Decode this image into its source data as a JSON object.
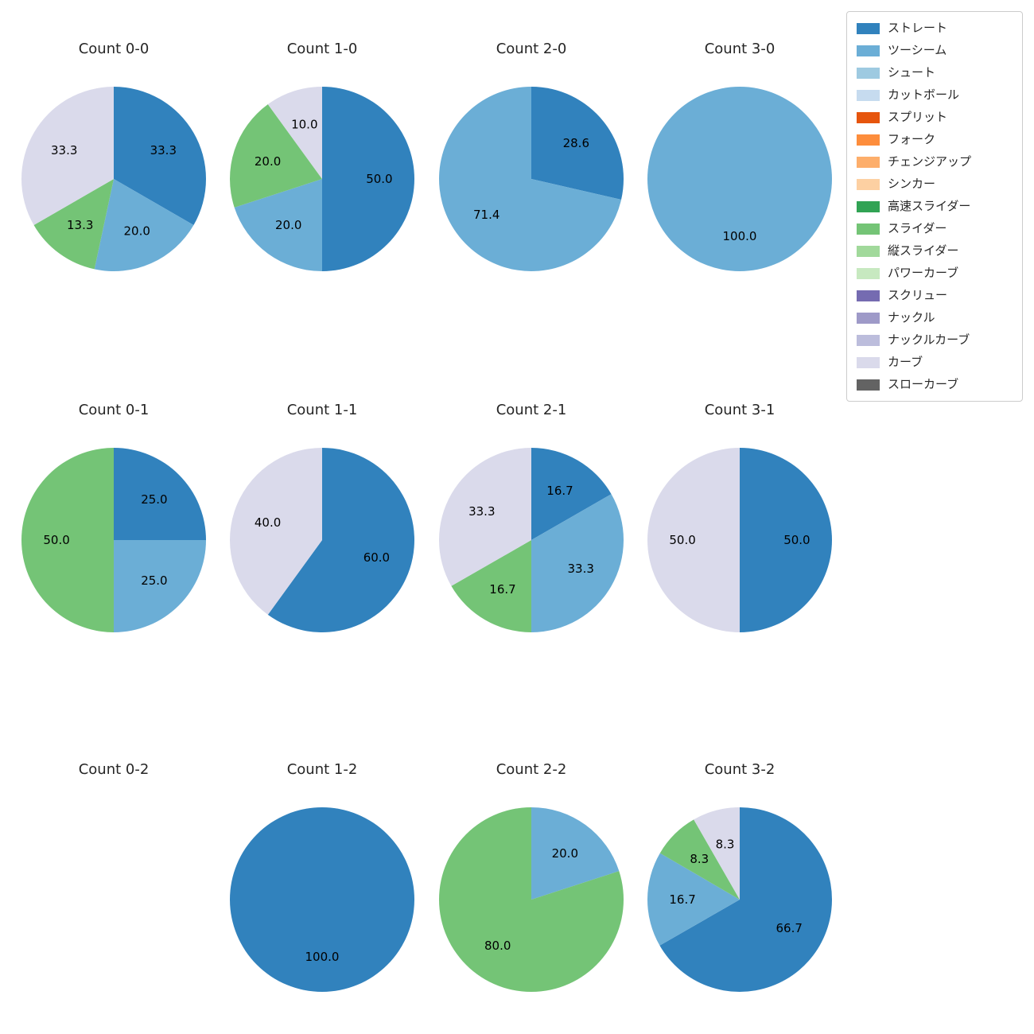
{
  "legend": {
    "items": [
      {
        "label": "ストレート",
        "color": "#3182bd"
      },
      {
        "label": "ツーシーム",
        "color": "#6baed6"
      },
      {
        "label": "シュート",
        "color": "#9ecae1"
      },
      {
        "label": "カットボール",
        "color": "#c6dbef"
      },
      {
        "label": "スプリット",
        "color": "#e6550d"
      },
      {
        "label": "フォーク",
        "color": "#fd8d3c"
      },
      {
        "label": "チェンジアップ",
        "color": "#fdae6b"
      },
      {
        "label": "シンカー",
        "color": "#fdd0a2"
      },
      {
        "label": "高速スライダー",
        "color": "#31a354"
      },
      {
        "label": "スライダー",
        "color": "#74c476"
      },
      {
        "label": "縦スライダー",
        "color": "#a1d99b"
      },
      {
        "label": "パワーカーブ",
        "color": "#c7e9c0"
      },
      {
        "label": "スクリュー",
        "color": "#756bb1"
      },
      {
        "label": "ナックル",
        "color": "#9e9ac8"
      },
      {
        "label": "ナックルカーブ",
        "color": "#bcbddc"
      },
      {
        "label": "カーブ",
        "color": "#dadaeb"
      },
      {
        "label": "スローカーブ",
        "color": "#636363"
      }
    ]
  },
  "chart_data": [
    {
      "type": "pie",
      "title": "Count 0-0",
      "labels": [
        "ストレート",
        "ツーシーム",
        "スライダー",
        "カーブ"
      ],
      "values": [
        33.3,
        20.0,
        13.3,
        33.3
      ],
      "start_angle": "top",
      "direction": "clockwise"
    },
    {
      "type": "pie",
      "title": "Count 1-0",
      "labels": [
        "ストレート",
        "ツーシーム",
        "スライダー",
        "カーブ"
      ],
      "values": [
        50.0,
        20.0,
        20.0,
        10.0
      ],
      "start_angle": "top",
      "direction": "clockwise"
    },
    {
      "type": "pie",
      "title": "Count 2-0",
      "labels": [
        "ストレート",
        "ツーシーム"
      ],
      "values": [
        28.6,
        71.4
      ],
      "start_angle": "top",
      "direction": "clockwise"
    },
    {
      "type": "pie",
      "title": "Count 3-0",
      "labels": [
        "ツーシーム"
      ],
      "values": [
        100.0
      ],
      "start_angle": "top",
      "direction": "clockwise"
    },
    {
      "type": "pie",
      "title": "Count 0-1",
      "labels": [
        "ストレート",
        "ツーシーム",
        "スライダー"
      ],
      "values": [
        25.0,
        25.0,
        50.0
      ],
      "start_angle": "top",
      "direction": "clockwise"
    },
    {
      "type": "pie",
      "title": "Count 1-1",
      "labels": [
        "ストレート",
        "カーブ"
      ],
      "values": [
        60.0,
        40.0
      ],
      "start_angle": "top",
      "direction": "clockwise"
    },
    {
      "type": "pie",
      "title": "Count 2-1",
      "labels": [
        "ストレート",
        "ツーシーム",
        "スライダー",
        "カーブ"
      ],
      "values": [
        16.7,
        33.3,
        16.7,
        33.3
      ],
      "start_angle": "top",
      "direction": "clockwise"
    },
    {
      "type": "pie",
      "title": "Count 3-1",
      "labels": [
        "ストレート",
        "カーブ"
      ],
      "values": [
        50.0,
        50.0
      ],
      "start_angle": "top",
      "direction": "clockwise"
    },
    {
      "type": "pie",
      "title": "Count 0-2",
      "labels": [],
      "values": [],
      "start_angle": "top",
      "direction": "clockwise"
    },
    {
      "type": "pie",
      "title": "Count 1-2",
      "labels": [
        "ストレート"
      ],
      "values": [
        100.0
      ],
      "start_angle": "top",
      "direction": "clockwise"
    },
    {
      "type": "pie",
      "title": "Count 2-2",
      "labels": [
        "ツーシーム",
        "スライダー"
      ],
      "values": [
        20.0,
        80.0
      ],
      "start_angle": "top",
      "direction": "clockwise"
    },
    {
      "type": "pie",
      "title": "Count 3-2",
      "labels": [
        "ストレート",
        "ツーシーム",
        "スライダー",
        "カーブ"
      ],
      "values": [
        66.7,
        16.7,
        8.3,
        8.3
      ],
      "start_angle": "top",
      "direction": "clockwise"
    }
  ]
}
